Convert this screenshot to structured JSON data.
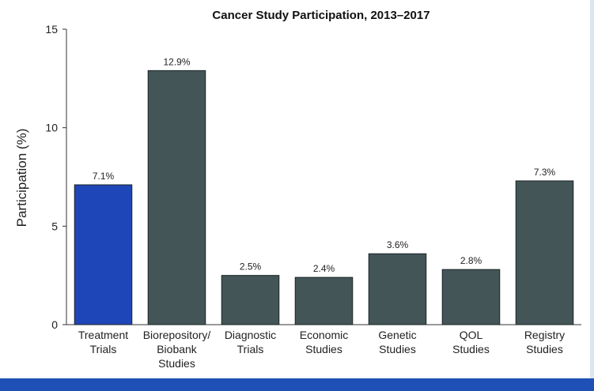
{
  "chart_data": {
    "type": "bar",
    "title": "Cancer Study Participation, 2013–2017",
    "ylabel": "Participation (%)",
    "xlabel": "",
    "ylim": [
      0,
      15
    ],
    "yticks": [
      0,
      5,
      10,
      15
    ],
    "grid": false,
    "categories": [
      [
        "Treatment",
        "Trials"
      ],
      [
        "Biorepository/",
        "Biobank",
        "Studies"
      ],
      [
        "Diagnostic",
        "Trials"
      ],
      [
        "Economic",
        "Studies"
      ],
      [
        "Genetic",
        "Studies"
      ],
      [
        "QOL",
        "Studies"
      ],
      [
        "Registry",
        "Studies"
      ]
    ],
    "values": [
      7.1,
      12.9,
      2.5,
      2.4,
      3.6,
      2.8,
      7.3
    ],
    "value_labels": [
      "7.1%",
      "12.9%",
      "2.5%",
      "2.4%",
      "3.6%",
      "2.8%",
      "7.3%"
    ],
    "colors": [
      "#1f46b8",
      "#435557",
      "#435557",
      "#435557",
      "#435557",
      "#435557",
      "#435557"
    ]
  }
}
